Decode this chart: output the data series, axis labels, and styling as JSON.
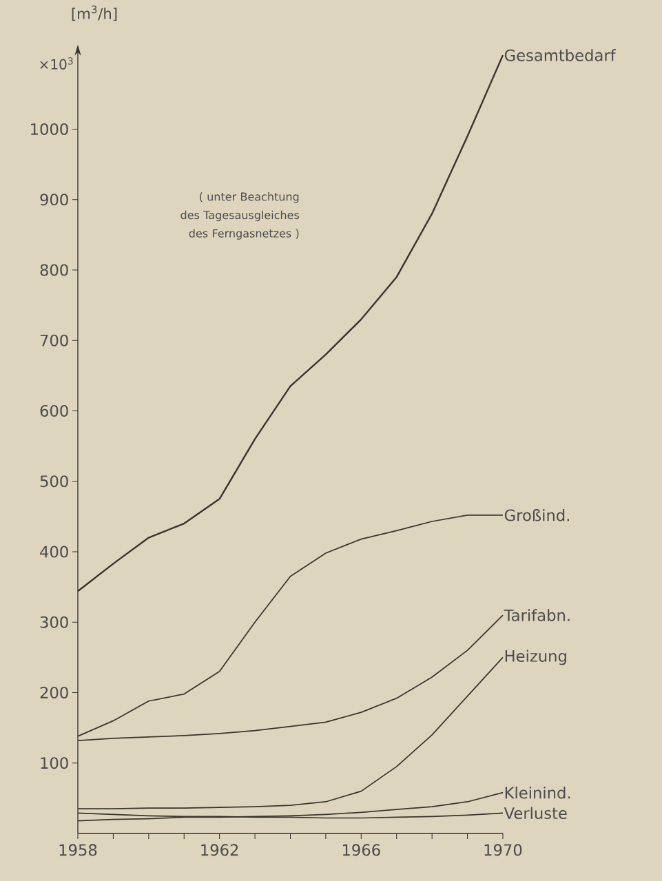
{
  "chart_data": {
    "type": "line",
    "ylabel": "[m$^{3}$/h]",
    "annotations": [
      "×10$^{3}$",
      "( unter Beachtung des Tagesausgleiches des Ferngasnetzes )"
    ],
    "x": [
      1958,
      1959,
      1960,
      1961,
      1962,
      1963,
      1964,
      1965,
      1966,
      1967,
      1968,
      1969,
      1970
    ],
    "xlim": [
      1958,
      1970
    ],
    "xticks": [
      1958,
      {
        "value": 1959,
        "label": null
      },
      {
        "value": 1960,
        "label": null
      },
      {
        "value": 1961,
        "label": null
      },
      1962,
      {
        "value": 1963,
        "label": null
      },
      {
        "value": 1964,
        "label": null
      },
      {
        "value": 1965,
        "label": null
      },
      1966,
      {
        "value": 1967,
        "label": null
      },
      {
        "value": 1968,
        "label": null
      },
      {
        "value": 1969,
        "label": null
      },
      1970
    ],
    "ylim": [
      0,
      1110
    ],
    "yticks": [
      100,
      200,
      300,
      400,
      500,
      600,
      700,
      800,
      900,
      1000
    ],
    "series": [
      {
        "name": "Gesamtbedarf",
        "color": "#3a342e",
        "values": [
          344,
          383,
          420,
          440,
          475,
          560,
          635,
          680,
          730,
          790,
          880,
          990,
          1105
        ]
      },
      {
        "name": "Großind.",
        "color": "#3a342e",
        "values": [
          138,
          160,
          188,
          198,
          230,
          300,
          365,
          398,
          418,
          430,
          443,
          452,
          452
        ]
      },
      {
        "name": "Tarifabn.",
        "color": "#3a342e",
        "values": [
          132,
          135,
          137,
          139,
          142,
          146,
          152,
          158,
          172,
          192,
          222,
          260,
          310
        ]
      },
      {
        "name": "Heizung",
        "color": "#3a342e",
        "values": [
          35,
          35,
          36,
          36,
          37,
          38,
          40,
          45,
          60,
          95,
          140,
          195,
          250
        ]
      },
      {
        "name": "Kleinind.",
        "color": "#3a342e",
        "values": [
          18,
          20,
          21,
          23,
          23,
          24,
          25,
          27,
          30,
          34,
          38,
          45,
          58
        ]
      },
      {
        "name": "Verluste",
        "color": "#3a342e",
        "values": [
          29,
          27,
          25,
          24,
          24,
          23,
          23,
          22,
          22,
          23,
          24,
          26,
          29
        ]
      }
    ]
  }
}
